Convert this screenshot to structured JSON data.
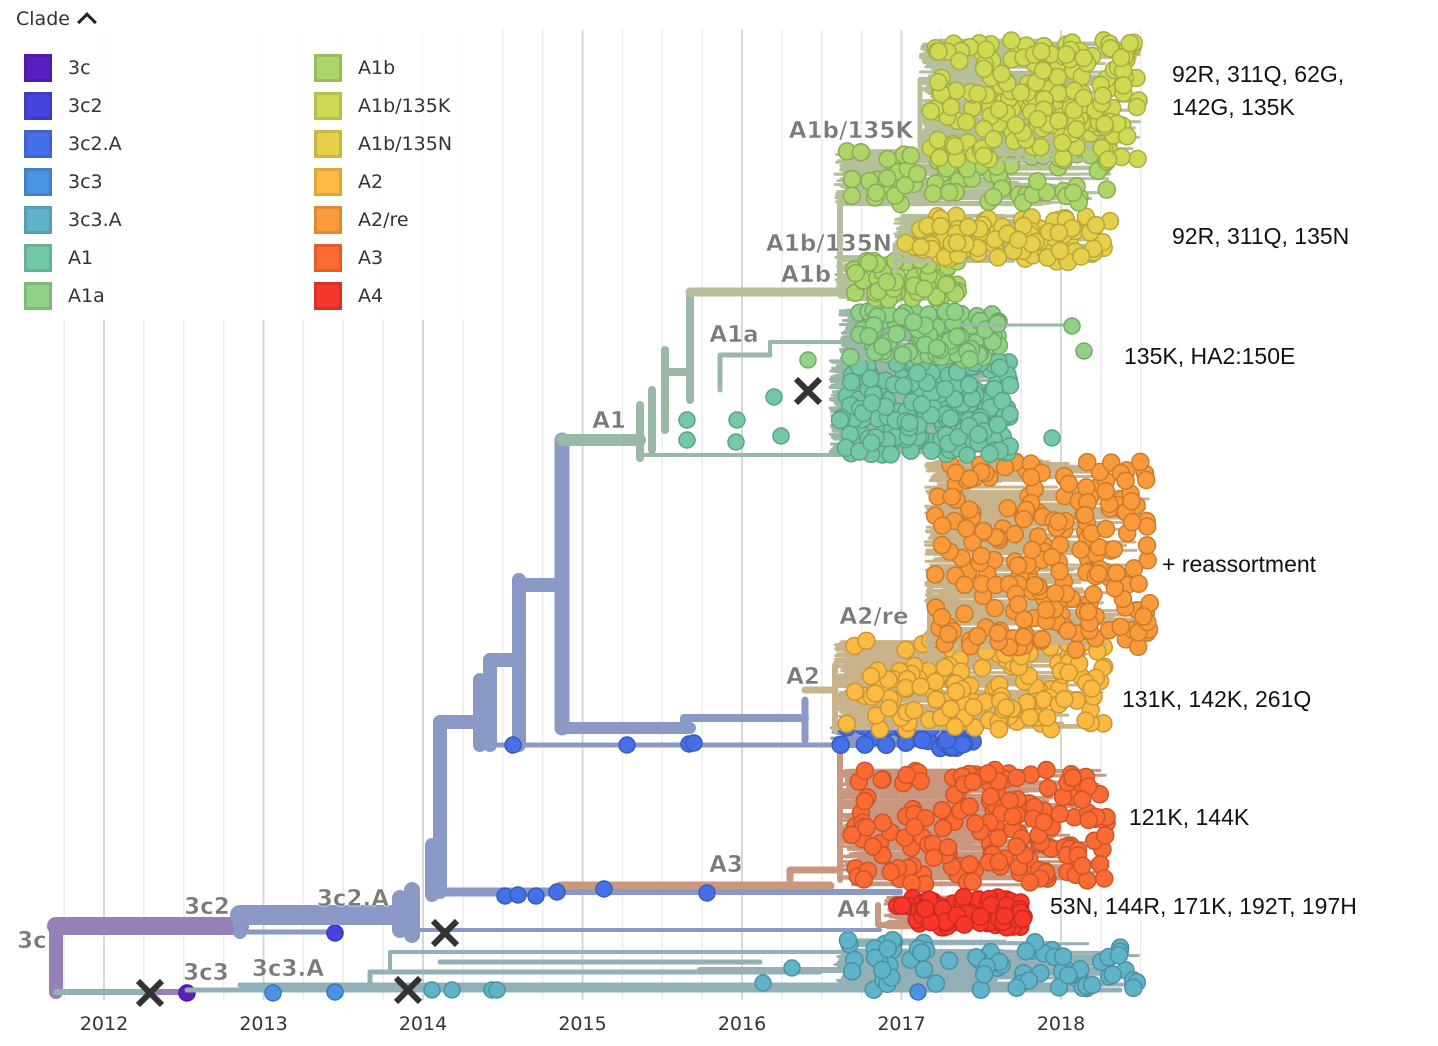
{
  "legend": {
    "title": "Clade",
    "items": [
      {
        "label": "3c",
        "color": "#5a1fbf"
      },
      {
        "label": "3c2",
        "color": "#4644de"
      },
      {
        "label": "3c2.A",
        "color": "#4670e8"
      },
      {
        "label": "3c3",
        "color": "#4c92e3"
      },
      {
        "label": "3c3.A",
        "color": "#60b4c9"
      },
      {
        "label": "A1",
        "color": "#74c8a8"
      },
      {
        "label": "A1a",
        "color": "#8fd286"
      },
      {
        "label": "A1b",
        "color": "#acd66a"
      },
      {
        "label": "A1b/135K",
        "color": "#d0d954"
      },
      {
        "label": "A1b/135N",
        "color": "#e6cf4a"
      },
      {
        "label": "A2",
        "color": "#fbbb42"
      },
      {
        "label": "A2/re",
        "color": "#fb9a3a"
      },
      {
        "label": "A3",
        "color": "#fb6a33"
      },
      {
        "label": "A4",
        "color": "#f9362a"
      }
    ]
  },
  "axis": {
    "ticks": [
      "2012",
      "2013",
      "2014",
      "2015",
      "2016",
      "2017",
      "2018"
    ],
    "range": [
      2011.6,
      2018.6
    ]
  },
  "branch_labels": [
    "3c",
    "3c2",
    "3c2.A",
    "3c3",
    "3c3.A",
    "A1",
    "A1a",
    "A1b",
    "A1b/135N",
    "A1b/135K",
    "A2",
    "A2/re",
    "A3",
    "A4"
  ],
  "annotations": [
    {
      "clade": "A1b/135K",
      "text_line1": "92R, 311Q, 62G,",
      "text_line2": "142G, 135K"
    },
    {
      "clade": "A1b/135N",
      "text_line1": "92R, 311Q, 135N",
      "text_line2": ""
    },
    {
      "clade": "A1a",
      "text_line1": "135K, HA2:150E",
      "text_line2": ""
    },
    {
      "clade": "A2/re",
      "text_line1": "+ reassortment",
      "text_line2": ""
    },
    {
      "clade": "A2",
      "text_line1": "131K, 142K, 261Q",
      "text_line2": ""
    },
    {
      "clade": "A3",
      "text_line1": "121K, 144K",
      "text_line2": ""
    },
    {
      "clade": "A4",
      "text_line1": "53N, 144R, 171K, 192T, 197H",
      "text_line2": ""
    }
  ],
  "colors": {
    "branch_3c": "#9580b8",
    "branch_3c2": "#8a99c6",
    "branch_3c3": "#93b0b6",
    "branch_A1": "#9ab8a8",
    "branch_A1b": "#b5c09a",
    "branch_A2": "#c9b38a",
    "branch_A3": "#c99680",
    "grid": "#dcdcdc",
    "branch_label": "#7a7a7a",
    "x_marker": "#333333"
  }
}
